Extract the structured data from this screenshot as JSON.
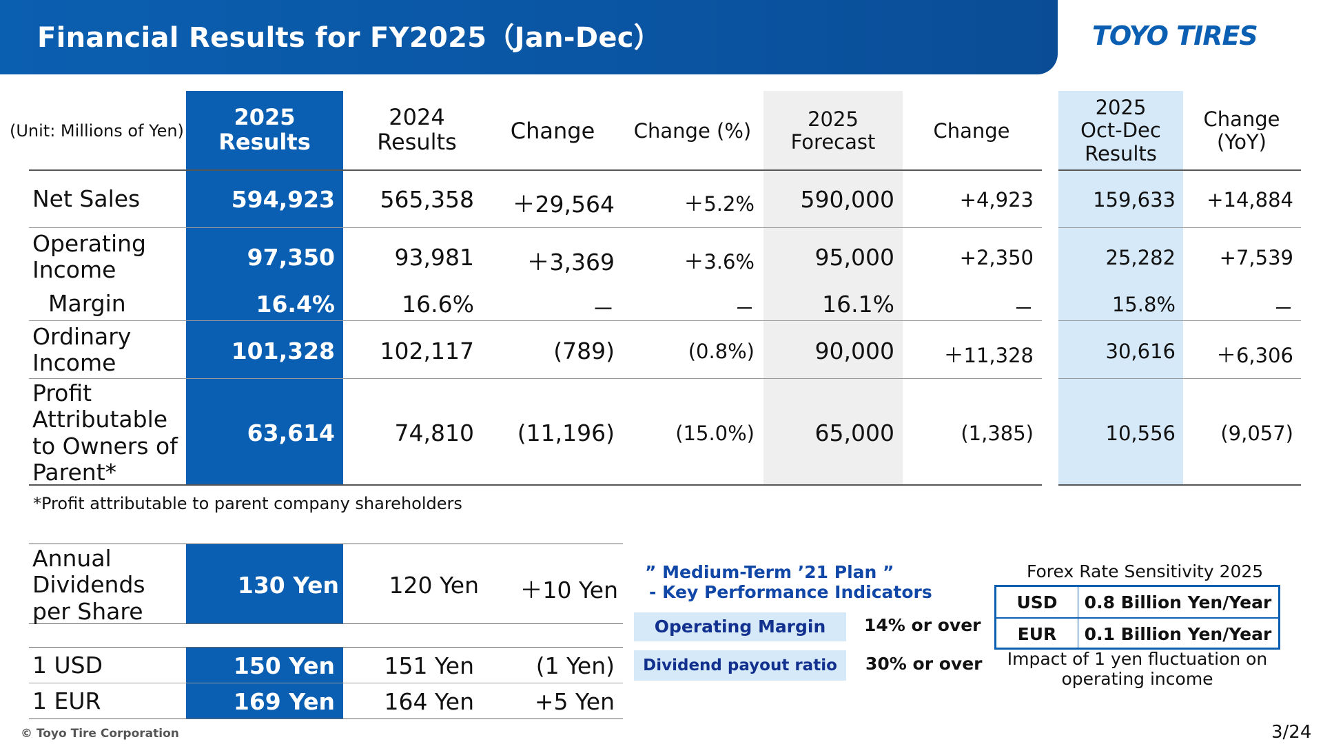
{
  "header": {
    "title": "Financial Results for FY2025（Jan-Dec）",
    "logo": "TOYO TIRES"
  },
  "results_table": {
    "unit_label": "(Unit: Millions of Yen)",
    "columns": {
      "results_2025": [
        "2025",
        "Results"
      ],
      "results_2024": [
        "2024",
        "Results"
      ],
      "change": "Change",
      "change_pct": "Change (%)",
      "forecast_2025": [
        "2025",
        "Forecast"
      ],
      "forecast_change": "Change",
      "octdec_2025": [
        "2025",
        "Oct-Dec",
        "Results"
      ],
      "octdec_change": [
        "Change",
        "(YoY)"
      ]
    },
    "rows": [
      {
        "label": [
          "Net Sales"
        ],
        "r2025": "594,923",
        "r2024": "565,358",
        "change": "＋29,564",
        "change_pct": "＋5.2%",
        "forecast": "590,000",
        "fc_change": "+4,923",
        "octdec": "159,633",
        "octdec_change": "+14,884"
      },
      {
        "label": [
          "Operating",
          "Income"
        ],
        "r2025": "97,350",
        "r2024": "93,981",
        "change": "＋3,369",
        "change_pct": "＋3.6%",
        "forecast": "95,000",
        "fc_change": "+2,350",
        "octdec": "25,282",
        "octdec_change": "+7,539"
      },
      {
        "label": [
          "Margin"
        ],
        "r2025": "16.4%",
        "r2024": "16.6%",
        "change": "－",
        "change_pct": "－",
        "forecast": "16.1%",
        "fc_change": "－",
        "octdec": "15.8%",
        "octdec_change": "－"
      },
      {
        "label": [
          "Ordinary",
          "Income"
        ],
        "r2025": "101,328",
        "r2024": "102,117",
        "change": "(789)",
        "change_pct": "(0.8%)",
        "forecast": "90,000",
        "fc_change": "＋11,328",
        "octdec": "30,616",
        "octdec_change": "＋6,306"
      },
      {
        "label": [
          "Profit",
          "Attributable",
          "to Owners of",
          "Parent*"
        ],
        "r2025": "63,614",
        "r2024": "74,810",
        "change": "(11,196)",
        "change_pct": "(15.0%)",
        "forecast": "65,000",
        "fc_change": "(1,385)",
        "octdec": "10,556",
        "octdec_change": "(9,057)"
      }
    ],
    "footnote": "*Profit attributable to parent company shareholders"
  },
  "dividend_table": {
    "rows": [
      {
        "label": [
          "Annual",
          "Dividends",
          "per Share"
        ],
        "r2025": "130 Yen",
        "r2024": "120 Yen",
        "change": "＋10 Yen"
      },
      {
        "label": [
          "1 USD"
        ],
        "r2025": "150 Yen",
        "r2024": "151 Yen",
        "change": "(1 Yen)"
      },
      {
        "label": [
          "1 EUR"
        ],
        "r2025": "169 Yen",
        "r2024": "164 Yen",
        "change": "+5 Yen"
      }
    ]
  },
  "kpi": {
    "title_line1": "” Medium-Term ’21 Plan ”",
    "title_line2": "- Key Performance Indicators",
    "items": [
      {
        "label": "Operating Margin",
        "value": "14% or over"
      },
      {
        "label": "Dividend payout ratio",
        "value": "30% or over"
      }
    ]
  },
  "forex": {
    "title": "Forex Rate Sensitivity 2025",
    "rows": [
      {
        "currency": "USD",
        "value": "0.8 Billion Yen/Year"
      },
      {
        "currency": "EUR",
        "value": "0.1 Billion Yen/Year"
      }
    ],
    "note_line1": "Impact of 1 yen fluctuation on",
    "note_line2": "operating income"
  },
  "footer": {
    "copyright": "© Toyo Tire Corporation",
    "page": "3/24"
  },
  "colors": {
    "brand_blue": "#0a5fb3",
    "forecast_bg": "#efefef",
    "octdec_bg": "#d6e9f9",
    "kpi_text": "#1148a8"
  }
}
